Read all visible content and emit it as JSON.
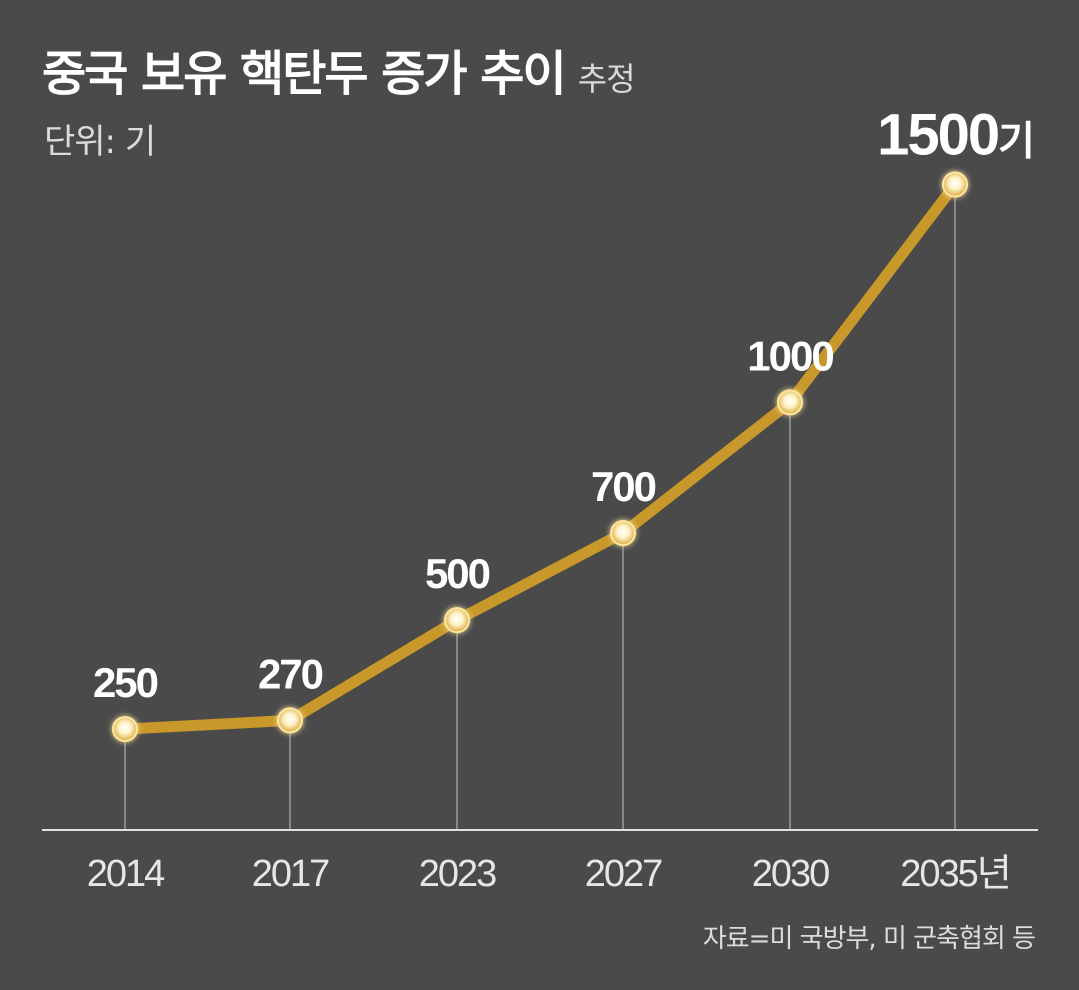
{
  "header": {
    "title": "중국 보유 핵탄두 증가 추이",
    "subtitle": "추정",
    "unit": "단위: 기"
  },
  "source": "자료=미 국방부, 미 군축협회 등",
  "colors": {
    "background": "#4a4a4a",
    "line": "#c9982a",
    "marker_fill": "#fff3c8",
    "marker_glow": "#ffe7a0",
    "axis": "#e0e0e0",
    "guide": "#9a9a9a"
  },
  "chart_data": {
    "type": "line",
    "title": "중국 보유 핵탄두 증가 추이",
    "subtitle": "추정",
    "ylabel": "단위: 기",
    "xlabel": "",
    "categories": [
      "2014",
      "2017",
      "2023",
      "2027",
      "2030",
      "2035"
    ],
    "x_tick_labels": [
      "2014",
      "2017",
      "2023",
      "2027",
      "2030",
      "2035년"
    ],
    "values": [
      250,
      270,
      500,
      700,
      1000,
      1500
    ],
    "data_labels": [
      "250",
      "270",
      "500",
      "700",
      "1000",
      "1500"
    ],
    "last_label_suffix": "기",
    "ylim": [
      0,
      1500
    ],
    "grid": false,
    "legend": "none"
  }
}
